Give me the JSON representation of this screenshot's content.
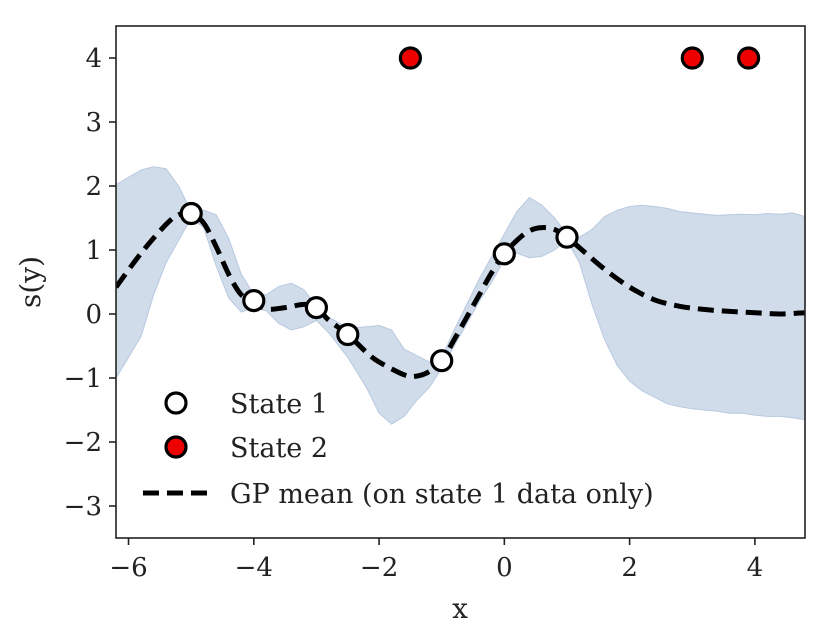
{
  "chart_data": {
    "type": "scatter",
    "title": "",
    "xlabel": "x",
    "ylabel": "s(y)",
    "xlim": [
      -6.2,
      4.8
    ],
    "ylim": [
      -3.5,
      4.5
    ],
    "xticks": [
      -6,
      -4,
      -2,
      0,
      2,
      4
    ],
    "xtick_labels": [
      "−6",
      "−4",
      "−2",
      "0",
      "2",
      "4"
    ],
    "yticks": [
      -3,
      -2,
      -1,
      0,
      1,
      2,
      3,
      4
    ],
    "ytick_labels": [
      "−3",
      "−2",
      "−1",
      "0",
      "1",
      "2",
      "3",
      "4"
    ],
    "grid": false,
    "legend_position": "lower-left",
    "series": [
      {
        "name": "State 1",
        "kind": "points",
        "color": "#ffffff",
        "edge": "#000000",
        "x": [
          -5,
          -4,
          -3,
          -2.5,
          -1,
          0,
          1
        ],
        "y": [
          1.57,
          0.21,
          0.1,
          -0.32,
          -0.73,
          0.94,
          1.2
        ]
      },
      {
        "name": "State 2",
        "kind": "points",
        "color": "#ee0000",
        "edge": "#000000",
        "x": [
          -1.5,
          3,
          3.9
        ],
        "y": [
          4,
          4,
          4
        ]
      },
      {
        "name": "GP mean (on state 1 data only)",
        "kind": "line",
        "style": "dashed",
        "color": "#000000",
        "x": [
          -6.2,
          -5.8,
          -5.4,
          -5.2,
          -5,
          -4.8,
          -4.6,
          -4.4,
          -4.2,
          -4,
          -3.8,
          -3.5,
          -3.2,
          -3,
          -2.8,
          -2.5,
          -2.2,
          -2,
          -1.6,
          -1.4,
          -1.2,
          -1,
          -0.8,
          -0.6,
          -0.4,
          -0.2,
          0,
          0.2,
          0.4,
          0.6,
          0.8,
          1,
          1.3,
          1.6,
          2,
          2.4,
          2.8,
          3.2,
          3.6,
          4,
          4.4,
          4.8
        ],
        "y": [
          0.42,
          0.95,
          1.4,
          1.55,
          1.57,
          1.42,
          1.05,
          0.62,
          0.3,
          0.21,
          0.08,
          0.1,
          0.15,
          0.1,
          -0.1,
          -0.32,
          -0.6,
          -0.75,
          -0.95,
          -0.97,
          -0.9,
          -0.73,
          -0.4,
          -0.05,
          0.3,
          0.65,
          0.94,
          1.15,
          1.3,
          1.35,
          1.32,
          1.2,
          0.95,
          0.7,
          0.42,
          0.22,
          0.12,
          0.07,
          0.04,
          0.02,
          0.0,
          0.02
        ]
      },
      {
        "name": "GP uncertainty band",
        "kind": "band",
        "color": "#b8c9e0",
        "x": [
          -6.2,
          -5.8,
          -5.6,
          -5.4,
          -5.2,
          -5,
          -4.8,
          -4.6,
          -4.4,
          -4.2,
          -4,
          -3.8,
          -3.6,
          -3.4,
          -3.2,
          -3,
          -2.8,
          -2.5,
          -2.2,
          -2,
          -1.8,
          -1.6,
          -1.4,
          -1.2,
          -1,
          -0.8,
          -0.6,
          -0.4,
          -0.2,
          0,
          0.2,
          0.4,
          0.6,
          0.8,
          1,
          1.2,
          1.4,
          1.6,
          1.8,
          2,
          2.2,
          2.4,
          2.6,
          2.8,
          3,
          3.2,
          3.4,
          3.6,
          3.8,
          4,
          4.2,
          4.4,
          4.6,
          4.8
        ],
        "upper": [
          2.02,
          2.25,
          2.3,
          2.27,
          2.0,
          1.6,
          1.62,
          1.55,
          1.18,
          0.62,
          0.3,
          0.3,
          0.43,
          0.48,
          0.38,
          0.12,
          -0.05,
          -0.22,
          -0.2,
          -0.18,
          -0.25,
          -0.55,
          -0.65,
          -0.75,
          -0.68,
          -0.25,
          0.15,
          0.55,
          0.9,
          1.25,
          1.6,
          1.82,
          1.7,
          1.5,
          1.25,
          1.2,
          1.32,
          1.52,
          1.62,
          1.68,
          1.7,
          1.68,
          1.65,
          1.6,
          1.58,
          1.56,
          1.54,
          1.55,
          1.56,
          1.55,
          1.57,
          1.56,
          1.58,
          1.52
        ],
        "lower": [
          -1.0,
          -0.35,
          0.3,
          0.8,
          1.15,
          1.5,
          1.35,
          0.75,
          0.25,
          0.03,
          0.1,
          0.05,
          -0.15,
          -0.25,
          -0.2,
          -0.1,
          -0.3,
          -0.68,
          -1.15,
          -1.55,
          -1.72,
          -1.6,
          -1.35,
          -1.15,
          -0.85,
          -0.5,
          -0.15,
          0.2,
          0.5,
          0.85,
          0.95,
          0.88,
          0.9,
          1.0,
          1.15,
          0.8,
          0.15,
          -0.4,
          -0.8,
          -1.05,
          -1.2,
          -1.3,
          -1.4,
          -1.45,
          -1.48,
          -1.5,
          -1.52,
          -1.55,
          -1.55,
          -1.58,
          -1.6,
          -1.6,
          -1.62,
          -1.65
        ]
      }
    ],
    "legend": [
      {
        "label": "State 1",
        "marker": "circle-white"
      },
      {
        "label": "State 2",
        "marker": "circle-red"
      },
      {
        "label": "GP mean (on state 1 data only)",
        "marker": "dashed-line"
      }
    ]
  }
}
